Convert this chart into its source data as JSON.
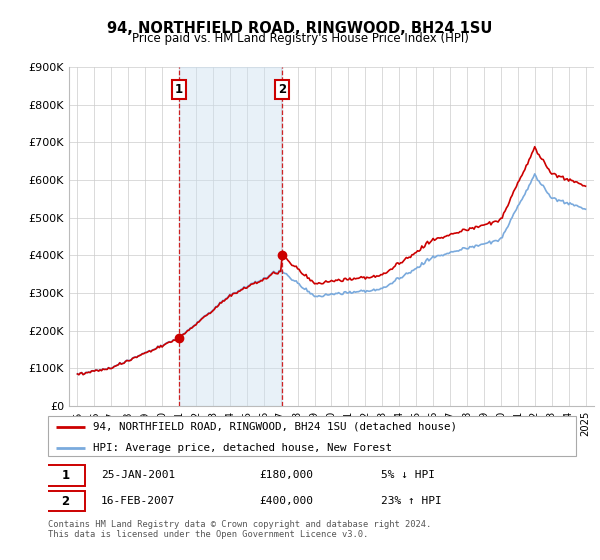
{
  "title": "94, NORTHFIELD ROAD, RINGWOOD, BH24 1SU",
  "subtitle": "Price paid vs. HM Land Registry's House Price Index (HPI)",
  "legend_line1": "94, NORTHFIELD ROAD, RINGWOOD, BH24 1SU (detached house)",
  "legend_line2": "HPI: Average price, detached house, New Forest",
  "transaction1_date": "25-JAN-2001",
  "transaction1_price": "£180,000",
  "transaction1_hpi": "5% ↓ HPI",
  "transaction2_date": "16-FEB-2007",
  "transaction2_price": "£400,000",
  "transaction2_hpi": "23% ↑ HPI",
  "footer": "Contains HM Land Registry data © Crown copyright and database right 2024.\nThis data is licensed under the Open Government Licence v3.0.",
  "red_color": "#cc0000",
  "blue_color": "#7aaadd",
  "vline_color": "#cc0000",
  "fill_blue_color": "#cce0f0",
  "ylim": [
    0,
    900000
  ],
  "xlim_start": 1994.5,
  "xlim_end": 2025.5
}
